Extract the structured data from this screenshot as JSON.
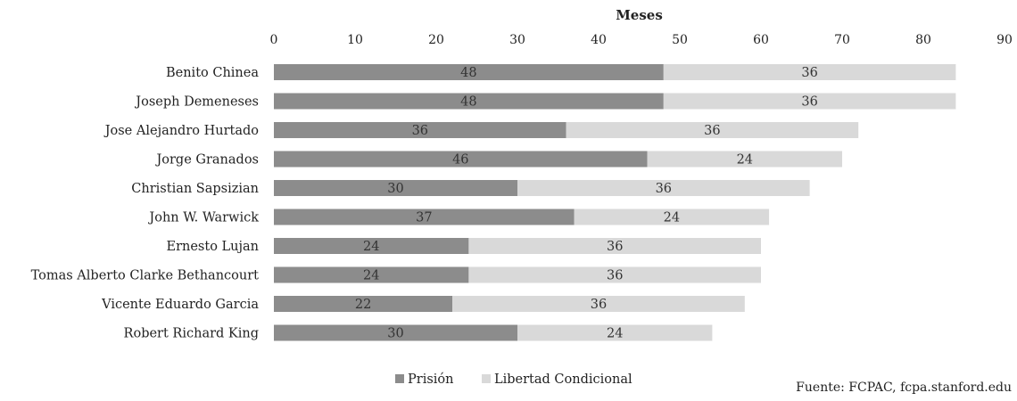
{
  "chart_data": {
    "type": "bar",
    "orientation": "horizontal",
    "stacked": true,
    "xlabel": "Meses",
    "xlabel_position": "top",
    "xlim": [
      0,
      90
    ],
    "xticks": [
      0,
      10,
      20,
      30,
      40,
      50,
      60,
      70,
      80,
      90
    ],
    "grid": false,
    "legend_position": "bottom",
    "categories": [
      "Benito Chinea",
      "Joseph Demeneses",
      "Jose Alejandro Hurtado",
      "Jorge Granados",
      "Christian Sapsizian",
      "John W. Warwick",
      "Ernesto Lujan",
      "Tomas Alberto Clarke Bethancourt",
      "Vicente Eduardo Garcia",
      "Robert Richard King"
    ],
    "series": [
      {
        "name": "Prisión",
        "color": "#8c8c8c",
        "values": [
          48,
          48,
          36,
          46,
          30,
          37,
          24,
          24,
          22,
          30
        ]
      },
      {
        "name": "Libertad Condicional",
        "color": "#d9d9d9",
        "values": [
          36,
          36,
          36,
          24,
          36,
          24,
          36,
          36,
          36,
          24
        ]
      }
    ]
  },
  "source_text": "Fuente: FCPAC, fcpa.stanford.edu"
}
